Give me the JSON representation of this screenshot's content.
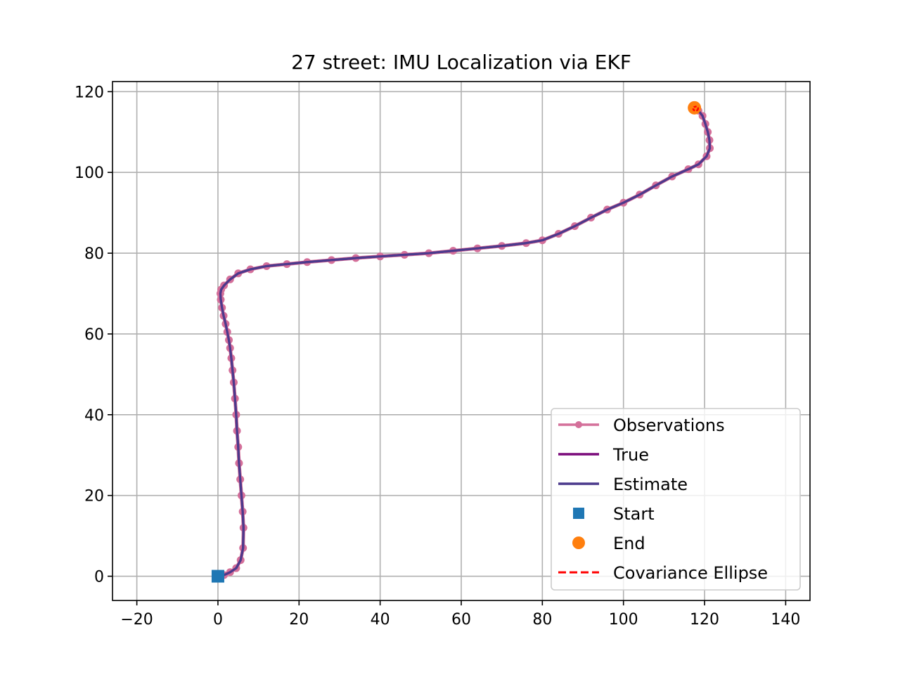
{
  "chart_data": {
    "type": "line",
    "title": "27 street: IMU Localization via EKF",
    "xlabel": "",
    "ylabel": "",
    "xlim": [
      -26,
      146
    ],
    "ylim": [
      -6,
      122.5
    ],
    "xticks": [
      -20,
      0,
      20,
      40,
      60,
      80,
      100,
      120,
      140
    ],
    "yticks": [
      0,
      20,
      40,
      60,
      80,
      100,
      120
    ],
    "xtick_labels": [
      "−20",
      "0",
      "20",
      "40",
      "60",
      "80",
      "100",
      "120",
      "140"
    ],
    "ytick_labels": [
      "0",
      "20",
      "40",
      "60",
      "80",
      "100",
      "120"
    ],
    "grid": true,
    "legend_position": "lower-right",
    "colors": {
      "observations": "#d4709a",
      "true": "#7a0a7a",
      "estimate": "#4b3a8c",
      "start": "#1f77b4",
      "end": "#ff7f0e",
      "covariance": "#ff0000"
    },
    "series": [
      {
        "name": "Observations",
        "marker": "circle",
        "x": [
          0,
          1.5,
          3,
          4.5,
          5.6,
          6.2,
          6.3,
          6.1,
          5.8,
          5.5,
          5.2,
          5.0,
          4.7,
          4.5,
          4.2,
          3.9,
          3.6,
          3.3,
          3.0,
          2.7,
          2.3,
          1.9,
          1.4,
          1.0,
          0.7,
          0.6,
          0.8,
          1.5,
          3,
          5,
          8,
          12,
          17,
          22,
          28,
          34,
          40,
          46,
          52,
          58,
          64,
          70,
          76,
          80,
          84,
          88,
          92,
          96,
          100,
          104,
          108,
          112,
          116,
          118.5,
          120.5,
          121.3,
          121.2,
          120.8,
          120.2,
          119.5,
          118.5,
          117.5
        ],
        "y": [
          0,
          0.3,
          1.0,
          2.0,
          4.0,
          7.0,
          12.0,
          16.0,
          20.0,
          24.0,
          28.0,
          32.0,
          36.0,
          40.0,
          44.0,
          48.0,
          51.0,
          54.0,
          56.5,
          58.5,
          60.5,
          62.5,
          64.5,
          66.5,
          68.5,
          70.0,
          71.0,
          72.0,
          73.5,
          75.0,
          76.0,
          76.8,
          77.3,
          77.8,
          78.3,
          78.8,
          79.2,
          79.6,
          80.0,
          80.6,
          81.2,
          81.8,
          82.5,
          83.2,
          84.8,
          86.7,
          88.8,
          90.8,
          92.5,
          94.5,
          96.8,
          99.0,
          100.8,
          102.0,
          104.0,
          106.0,
          108.0,
          110.0,
          112.0,
          114.0,
          115.3,
          116.0
        ]
      },
      {
        "name": "True",
        "x": [
          0,
          1.5,
          3,
          4.5,
          5.6,
          6.2,
          6.3,
          6.1,
          5.8,
          5.5,
          5.2,
          5.0,
          4.7,
          4.5,
          4.2,
          3.9,
          3.6,
          3.3,
          3.0,
          2.7,
          2.3,
          1.9,
          1.4,
          1.0,
          0.7,
          0.6,
          0.8,
          1.5,
          3,
          5,
          8,
          12,
          17,
          22,
          28,
          34,
          40,
          46,
          52,
          58,
          64,
          70,
          76,
          80,
          84,
          88,
          92,
          96,
          100,
          104,
          108,
          112,
          116,
          118.5,
          120.5,
          121.3,
          121.2,
          120.8,
          120.2,
          119.5,
          118.5,
          117.5
        ],
        "y": [
          0,
          0.3,
          1.0,
          2.0,
          4.0,
          7.0,
          12.0,
          16.0,
          20.0,
          24.0,
          28.0,
          32.0,
          36.0,
          40.0,
          44.0,
          48.0,
          51.0,
          54.0,
          56.5,
          58.5,
          60.5,
          62.5,
          64.5,
          66.5,
          68.5,
          70.0,
          71.0,
          72.0,
          73.5,
          75.0,
          76.0,
          76.8,
          77.3,
          77.8,
          78.3,
          78.8,
          79.2,
          79.6,
          80.0,
          80.6,
          81.2,
          81.8,
          82.5,
          83.2,
          84.8,
          86.7,
          88.8,
          90.8,
          92.5,
          94.5,
          96.8,
          99.0,
          100.8,
          102.0,
          104.0,
          106.0,
          108.0,
          110.0,
          112.0,
          114.0,
          115.3,
          116.0
        ]
      },
      {
        "name": "Estimate",
        "x": [
          0,
          1.5,
          3,
          4.5,
          5.6,
          6.2,
          6.3,
          6.1,
          5.8,
          5.5,
          5.2,
          5.0,
          4.7,
          4.5,
          4.2,
          3.9,
          3.6,
          3.3,
          3.0,
          2.7,
          2.3,
          1.9,
          1.4,
          1.0,
          0.7,
          0.6,
          0.8,
          1.5,
          3,
          5,
          8,
          12,
          17,
          22,
          28,
          34,
          40,
          46,
          52,
          58,
          64,
          70,
          76,
          80,
          84,
          88,
          92,
          96,
          100,
          104,
          108,
          112,
          116,
          118.5,
          120.5,
          121.3,
          121.2,
          120.8,
          120.2,
          119.5,
          118.5,
          117.5
        ],
        "y": [
          0,
          0.3,
          1.0,
          2.0,
          4.0,
          7.0,
          12.0,
          16.0,
          20.0,
          24.0,
          28.0,
          32.0,
          36.0,
          40.0,
          44.0,
          48.0,
          51.0,
          54.0,
          56.5,
          58.5,
          60.5,
          62.5,
          64.5,
          66.5,
          68.5,
          70.0,
          71.0,
          72.0,
          73.5,
          75.0,
          76.0,
          76.8,
          77.3,
          77.8,
          78.3,
          78.8,
          79.2,
          79.6,
          80.0,
          80.6,
          81.2,
          81.8,
          82.5,
          83.2,
          84.8,
          86.7,
          88.8,
          90.8,
          92.5,
          94.5,
          96.8,
          99.0,
          100.8,
          102.0,
          104.0,
          106.0,
          108.0,
          110.0,
          112.0,
          114.0,
          115.3,
          116.0
        ]
      }
    ],
    "start_point": {
      "name": "Start",
      "marker": "square",
      "x": 0,
      "y": 0
    },
    "end_point": {
      "name": "End",
      "marker": "circle",
      "x": 117.5,
      "y": 116
    },
    "covariance": {
      "name": "Covariance Ellipse",
      "x": 117.8,
      "y": 115.8,
      "rx": 0.6,
      "ry": 0.5
    },
    "legend": [
      {
        "key": "observations",
        "label": "Observations",
        "style": "line-marker"
      },
      {
        "key": "true",
        "label": "True",
        "style": "line"
      },
      {
        "key": "estimate",
        "label": "Estimate",
        "style": "line"
      },
      {
        "key": "start",
        "label": "Start",
        "style": "square"
      },
      {
        "key": "end",
        "label": "End",
        "style": "circle"
      },
      {
        "key": "covariance",
        "label": "Covariance Ellipse",
        "style": "dashed"
      }
    ]
  }
}
